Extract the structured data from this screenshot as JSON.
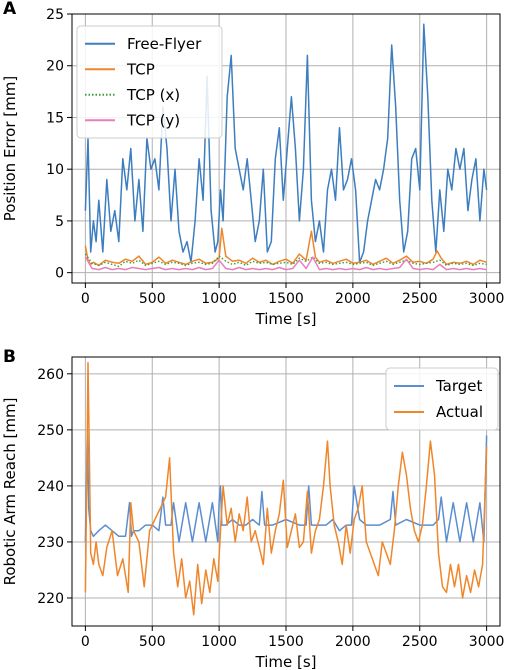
{
  "chart_data": [
    {
      "panel": "A",
      "type": "line",
      "xlabel": "Time [s]",
      "ylabel": "Position Error [mm]",
      "xlim": [
        -100,
        3100
      ],
      "ylim": [
        -1,
        25
      ],
      "xticks": [
        0,
        500,
        1000,
        1500,
        2000,
        2500,
        3000
      ],
      "yticks": [
        0,
        5,
        10,
        15,
        20,
        25
      ],
      "grid": true,
      "legend_position": "top-left",
      "series": [
        {
          "name": "Free-Flyer",
          "color": "#3c7ebf",
          "style": "solid",
          "x": [
            0,
            20,
            40,
            60,
            80,
            100,
            130,
            160,
            190,
            220,
            250,
            280,
            310,
            340,
            370,
            400,
            430,
            460,
            490,
            520,
            550,
            580,
            610,
            640,
            670,
            700,
            730,
            760,
            790,
            820,
            850,
            880,
            910,
            940,
            970,
            990,
            1010,
            1030,
            1060,
            1090,
            1120,
            1150,
            1180,
            1210,
            1240,
            1270,
            1300,
            1330,
            1360,
            1390,
            1420,
            1450,
            1480,
            1510,
            1540,
            1570,
            1600,
            1630,
            1660,
            1690,
            1720,
            1750,
            1780,
            1810,
            1840,
            1870,
            1900,
            1930,
            1960,
            1990,
            2020,
            2050,
            2080,
            2110,
            2140,
            2170,
            2200,
            2230,
            2260,
            2290,
            2320,
            2350,
            2380,
            2410,
            2440,
            2470,
            2500,
            2530,
            2560,
            2590,
            2620,
            2650,
            2680,
            2710,
            2740,
            2770,
            2800,
            2830,
            2860,
            2890,
            2920,
            2950,
            2980,
            3000
          ],
          "y": [
            6,
            13,
            2,
            5,
            3,
            7,
            2,
            9,
            4,
            6,
            3,
            11,
            8,
            12,
            5,
            9,
            4,
            13,
            10,
            11,
            8,
            16,
            12,
            5,
            10,
            4,
            2,
            3,
            1,
            5,
            11,
            7,
            19,
            6,
            2,
            3,
            8,
            5,
            17,
            21,
            12,
            10,
            8,
            11,
            7,
            3,
            5,
            10,
            2,
            3,
            11,
            14,
            7,
            12,
            17,
            12,
            5,
            10,
            21,
            7,
            3,
            5,
            2,
            8,
            10,
            7,
            14,
            8,
            9,
            11,
            8,
            1,
            2,
            5,
            7,
            9,
            8,
            10,
            13,
            22,
            16,
            7,
            2,
            4,
            11,
            12,
            8,
            24,
            17,
            7,
            2,
            8,
            4,
            10,
            8,
            12,
            10,
            12,
            6,
            9,
            11,
            5,
            10,
            8
          ]
        },
        {
          "name": "TCP",
          "color": "#f0862a",
          "style": "solid",
          "x": [
            0,
            20,
            40,
            60,
            100,
            150,
            200,
            250,
            300,
            350,
            400,
            450,
            500,
            550,
            600,
            650,
            700,
            750,
            800,
            850,
            900,
            950,
            1000,
            1020,
            1050,
            1100,
            1150,
            1200,
            1250,
            1300,
            1350,
            1400,
            1450,
            1500,
            1550,
            1600,
            1650,
            1690,
            1720,
            1750,
            1800,
            1850,
            1900,
            1950,
            2000,
            2050,
            2100,
            2150,
            2200,
            2250,
            2300,
            2350,
            2400,
            2450,
            2500,
            2550,
            2600,
            2630,
            2660,
            2700,
            2750,
            2800,
            2850,
            2900,
            2950,
            3000
          ],
          "y": [
            2.6,
            1.2,
            0.8,
            1.0,
            0.7,
            1.2,
            1.0,
            0.9,
            1.3,
            1.1,
            1.6,
            0.8,
            1.0,
            1.5,
            0.9,
            1.2,
            1.0,
            0.8,
            1.1,
            1.3,
            0.9,
            1.0,
            1.4,
            4.3,
            1.6,
            1.1,
            1.2,
            0.9,
            1.4,
            1.0,
            1.2,
            0.8,
            1.1,
            1.3,
            0.9,
            1.8,
            1.2,
            4.0,
            1.5,
            1.0,
            1.2,
            0.9,
            1.1,
            1.3,
            0.9,
            1.0,
            1.2,
            0.8,
            1.1,
            1.4,
            0.9,
            1.2,
            1.6,
            1.0,
            1.1,
            0.9,
            1.3,
            2.1,
            1.4,
            0.8,
            1.0,
            0.9,
            1.1,
            0.8,
            1.2,
            1.0
          ]
        },
        {
          "name": "TCP (x)",
          "color": "#3a9c3a",
          "style": "dotted",
          "x": [
            0,
            50,
            100,
            150,
            200,
            250,
            300,
            350,
            400,
            450,
            500,
            550,
            600,
            650,
            700,
            750,
            800,
            850,
            900,
            950,
            1000,
            1050,
            1100,
            1150,
            1200,
            1250,
            1300,
            1350,
            1400,
            1450,
            1500,
            1550,
            1600,
            1650,
            1700,
            1750,
            1800,
            1850,
            1900,
            1950,
            2000,
            2050,
            2100,
            2150,
            2200,
            2250,
            2300,
            2350,
            2400,
            2450,
            2500,
            2550,
            2600,
            2650,
            2700,
            2750,
            2800,
            2850,
            2900,
            2950,
            3000
          ],
          "y": [
            1.8,
            0.9,
            0.7,
            1.0,
            0.8,
            0.6,
            1.1,
            0.9,
            1.2,
            0.7,
            0.9,
            1.1,
            0.8,
            1.0,
            0.9,
            0.7,
            0.9,
            1.0,
            0.8,
            0.9,
            1.6,
            1.1,
            0.8,
            1.0,
            0.7,
            1.1,
            0.9,
            1.0,
            0.8,
            0.9,
            1.0,
            0.8,
            1.4,
            1.1,
            1.5,
            0.9,
            1.0,
            0.8,
            0.9,
            1.0,
            0.8,
            0.9,
            1.0,
            0.7,
            0.9,
            1.1,
            0.8,
            1.0,
            1.2,
            0.9,
            0.8,
            0.9,
            1.0,
            1.2,
            0.7,
            0.9,
            0.8,
            0.9,
            0.7,
            0.9,
            0.8
          ]
        },
        {
          "name": "TCP (y)",
          "color": "#e77fbf",
          "style": "solid",
          "x": [
            0,
            50,
            100,
            150,
            200,
            250,
            300,
            350,
            400,
            450,
            500,
            550,
            600,
            650,
            700,
            750,
            800,
            850,
            900,
            950,
            1000,
            1050,
            1100,
            1150,
            1200,
            1250,
            1300,
            1350,
            1400,
            1450,
            1500,
            1550,
            1600,
            1650,
            1700,
            1750,
            1800,
            1850,
            1900,
            1950,
            2000,
            2050,
            2100,
            2150,
            2200,
            2250,
            2300,
            2350,
            2400,
            2450,
            2500,
            2550,
            2600,
            2650,
            2700,
            2750,
            2800,
            2850,
            2900,
            2950,
            3000
          ],
          "y": [
            1.5,
            0.4,
            0.3,
            0.5,
            0.3,
            0.4,
            0.3,
            0.5,
            0.4,
            0.3,
            0.4,
            0.5,
            0.3,
            0.4,
            0.3,
            0.4,
            0.3,
            0.5,
            0.3,
            0.4,
            1.2,
            0.4,
            0.3,
            0.5,
            0.3,
            0.4,
            0.3,
            0.4,
            0.3,
            0.5,
            0.3,
            0.4,
            1.2,
            0.4,
            1.5,
            0.3,
            0.4,
            0.3,
            0.4,
            0.3,
            0.4,
            0.3,
            0.5,
            0.3,
            0.4,
            0.3,
            0.4,
            0.5,
            1.3,
            0.4,
            0.3,
            0.4,
            0.3,
            0.8,
            0.3,
            0.4,
            0.3,
            0.4,
            0.3,
            0.4,
            0.3
          ]
        }
      ]
    },
    {
      "panel": "B",
      "type": "line",
      "xlabel": "Time [s]",
      "ylabel": "Robotic Arm Reach [mm]",
      "xlim": [
        -100,
        3100
      ],
      "ylim": [
        215,
        263
      ],
      "xticks": [
        0,
        500,
        1000,
        1500,
        2000,
        2500,
        3000
      ],
      "yticks": [
        220,
        230,
        240,
        250,
        260
      ],
      "grid": true,
      "legend_position": "top-right",
      "series": [
        {
          "name": "Target",
          "color": "#5b8ed0",
          "style": "solid",
          "x": [
            0,
            15,
            25,
            40,
            60,
            80,
            100,
            150,
            200,
            250,
            300,
            330,
            345,
            360,
            400,
            450,
            500,
            550,
            580,
            600,
            640,
            660,
            700,
            750,
            800,
            850,
            900,
            950,
            990,
            1000,
            1010,
            1020,
            1050,
            1100,
            1150,
            1200,
            1250,
            1300,
            1320,
            1340,
            1400,
            1500,
            1600,
            1650,
            1670,
            1690,
            1750,
            1800,
            1850,
            1900,
            1950,
            1990,
            2010,
            2050,
            2100,
            2150,
            2200,
            2280,
            2300,
            2320,
            2400,
            2500,
            2600,
            2640,
            2660,
            2700,
            2750,
            2800,
            2850,
            2900,
            2950,
            2980,
            3000
          ],
          "y": [
            230,
            250,
            236,
            232,
            231,
            231.5,
            232,
            233,
            232,
            231,
            231,
            237,
            231,
            232,
            232,
            233,
            233,
            232,
            238,
            233,
            233,
            237,
            230,
            237,
            230,
            237,
            230,
            237,
            230,
            237,
            240,
            233,
            233,
            234,
            233,
            233,
            234,
            233,
            239,
            233,
            233,
            234,
            233,
            233,
            240,
            233,
            233,
            233,
            234,
            232,
            233,
            233,
            240,
            234,
            233,
            233,
            233,
            234,
            239,
            233,
            234,
            233,
            233,
            234,
            238,
            230,
            237,
            230,
            237,
            230,
            237,
            230,
            249
          ]
        },
        {
          "name": "Actual",
          "color": "#f0862a",
          "style": "solid",
          "x": [
            0,
            10,
            20,
            30,
            40,
            60,
            80,
            100,
            130,
            160,
            200,
            240,
            280,
            320,
            340,
            360,
            400,
            440,
            480,
            520,
            560,
            600,
            630,
            660,
            690,
            720,
            750,
            780,
            810,
            840,
            870,
            900,
            930,
            960,
            990,
            1010,
            1030,
            1060,
            1090,
            1120,
            1150,
            1180,
            1210,
            1240,
            1270,
            1300,
            1330,
            1360,
            1390,
            1420,
            1450,
            1480,
            1510,
            1540,
            1570,
            1600,
            1630,
            1660,
            1690,
            1720,
            1750,
            1780,
            1810,
            1830,
            1860,
            1890,
            1920,
            1950,
            1980,
            2010,
            2040,
            2070,
            2100,
            2130,
            2160,
            2190,
            2220,
            2250,
            2280,
            2310,
            2340,
            2370,
            2400,
            2430,
            2460,
            2490,
            2520,
            2550,
            2580,
            2610,
            2640,
            2670,
            2700,
            2730,
            2760,
            2790,
            2820,
            2850,
            2880,
            2910,
            2940,
            2970,
            3000
          ],
          "y": [
            221,
            240,
            262,
            245,
            228,
            226,
            230,
            226,
            224,
            229,
            232,
            224,
            227,
            221,
            237,
            232,
            230,
            222,
            232,
            234,
            236,
            238,
            245,
            228,
            222,
            227,
            220,
            223,
            217,
            226,
            219,
            225,
            221,
            227,
            223,
            232,
            240,
            233,
            236,
            230,
            235,
            232,
            238,
            230,
            232,
            229,
            226,
            236,
            228,
            232,
            235,
            241,
            229,
            232,
            235,
            229,
            230,
            239,
            228,
            232,
            234,
            240,
            248,
            240,
            233,
            230,
            226,
            233,
            228,
            234,
            236,
            240,
            230,
            228,
            226,
            224,
            230,
            228,
            226,
            232,
            240,
            246,
            242,
            236,
            232,
            230,
            233,
            240,
            248,
            242,
            228,
            222,
            221,
            226,
            222,
            226,
            220,
            224,
            221,
            225,
            222,
            226,
            247
          ]
        }
      ]
    }
  ]
}
